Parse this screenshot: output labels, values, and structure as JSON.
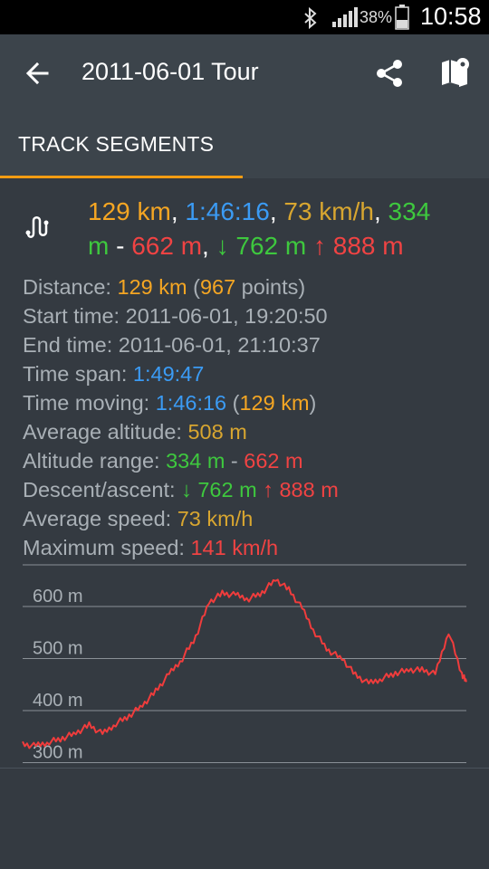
{
  "status_bar": {
    "battery_percent": "38%",
    "time": "10:58",
    "icons": [
      "bluetooth-icon",
      "signal-icon",
      "battery-icon"
    ]
  },
  "toolbar": {
    "title": "2011-06-01 Tour",
    "back_icon": "arrow-back-icon",
    "share_icon": "share-icon",
    "map_icon": "map-pin-icon"
  },
  "tabs": [
    {
      "label": "TRACK SEGMENTS",
      "selected": true
    }
  ],
  "summary": {
    "icon": "route-icon",
    "distance": "129 km",
    "moving_time": "1:46:16",
    "avg_speed": "73 km/h",
    "min_alt": "334",
    "min_alt_unit": "m",
    "max_alt": "662 m",
    "descent": "↓ 762 m",
    "ascent": "↑ 888 m"
  },
  "details": {
    "distance_label": "Distance: ",
    "distance_value": "129 km",
    "points_open": " (",
    "points_count": "967",
    "points_suffix": " points)",
    "start_label": "Start time: ",
    "start_value": "2011-06-01, 19:20:50",
    "end_label": "End time: ",
    "end_value": "2011-06-01, 21:10:37",
    "span_label": "Time span: ",
    "span_value": "1:49:47",
    "moving_label": "Time moving: ",
    "moving_value": "1:46:16",
    "moving_open": " (",
    "moving_distance": "129 km",
    "moving_close": ")",
    "avg_alt_label": "Average altitude: ",
    "avg_alt_value": "508 m",
    "alt_range_label": "Altitude range: ",
    "alt_min": "334 m",
    "alt_sep": " - ",
    "alt_max": "662 m",
    "desc_asc_label": "Descent/ascent: ",
    "descent": "↓ 762 m",
    "ascent": "↑ 888 m",
    "avg_speed_label": "Average speed: ",
    "avg_speed_value": "73 km/h",
    "max_speed_label": "Maximum speed: ",
    "max_speed_value": "141 km/h"
  },
  "chart_data": {
    "type": "line",
    "series": [
      {
        "x": [
          0,
          3,
          6,
          9,
          12,
          15,
          18,
          21,
          24,
          27,
          30,
          33,
          36,
          39,
          42,
          45,
          48,
          51,
          54,
          57,
          60,
          63,
          66,
          69,
          72,
          75,
          78,
          81,
          84,
          87,
          90,
          93,
          96,
          99,
          100
        ],
        "values": [
          335,
          332,
          340,
          347,
          357,
          372,
          355,
          375,
          390,
          410,
          437,
          470,
          500,
          542,
          608,
          625,
          622,
          615,
          627,
          652,
          632,
          596,
          548,
          515,
          500,
          468,
          452,
          462,
          472,
          478,
          478,
          470,
          552,
          470,
          455
        ]
      }
    ],
    "colors": [
      "#f03c3c"
    ],
    "ytick_labels": [
      "600 m",
      "500 m",
      "400 m",
      "300 m"
    ],
    "yticks": [
      600,
      500,
      400,
      300
    ],
    "ylim": [
      280,
      680
    ],
    "xlim": [
      0,
      100
    ],
    "grid": true
  }
}
